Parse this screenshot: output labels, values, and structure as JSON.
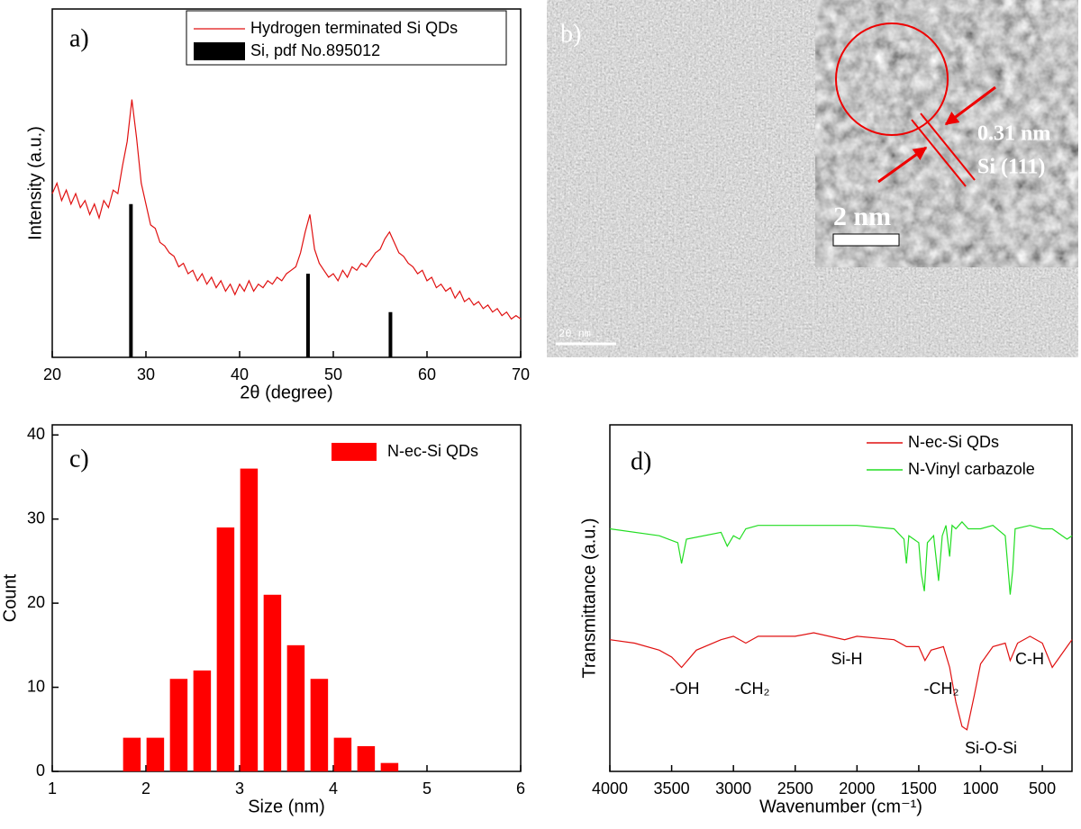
{
  "chart_data": [
    {
      "type": "line",
      "panel_label": "a)",
      "x_label": "2θ (degree)",
      "y_label": "Intensity (a.u.)",
      "xlim": [
        20,
        70
      ],
      "xticks": [
        20,
        30,
        40,
        50,
        60,
        70
      ],
      "ylim": [
        0,
        100
      ],
      "x": [
        20,
        20.5,
        21,
        21.5,
        22,
        22.5,
        23,
        23.5,
        24,
        24.5,
        25,
        25.5,
        26,
        26.5,
        27,
        27.5,
        28,
        28.5,
        29,
        29.5,
        30,
        30.5,
        31,
        31.5,
        32,
        32.5,
        33,
        33.5,
        34,
        34.5,
        35,
        35.5,
        36,
        36.5,
        37,
        37.5,
        38,
        38.5,
        39,
        39.5,
        40,
        40.5,
        41,
        41.5,
        42,
        42.5,
        43,
        43.5,
        44,
        44.5,
        45,
        45.5,
        46,
        46.5,
        47,
        47.5,
        48,
        48.5,
        49,
        49.5,
        50,
        50.5,
        51,
        51.5,
        52,
        52.5,
        53,
        53.5,
        54,
        54.5,
        55,
        55.5,
        56,
        56.5,
        57,
        57.5,
        58,
        58.5,
        59,
        59.5,
        60,
        60.5,
        61,
        61.5,
        62,
        62.5,
        63,
        63.5,
        64,
        64.5,
        65,
        65.5,
        66,
        66.5,
        67,
        67.5,
        68,
        68.5,
        69,
        69.5,
        70
      ],
      "series": [
        {
          "name": "Hydrogen terminated Si QDs",
          "color": "#e01010",
          "values": [
            47,
            50,
            45,
            48,
            44,
            47,
            43,
            45,
            41,
            44,
            40,
            45,
            43,
            48,
            47,
            55,
            62,
            74,
            63,
            50,
            44,
            38,
            37,
            33,
            32,
            30,
            29,
            26,
            27,
            24,
            25,
            22,
            24,
            21,
            23,
            20,
            22,
            19,
            21,
            18,
            21,
            19,
            22,
            19,
            21,
            20,
            22,
            21,
            23,
            22,
            24,
            25,
            26,
            30,
            36,
            41,
            31,
            27,
            25,
            23,
            24,
            22,
            25,
            23,
            26,
            25,
            27,
            26,
            28,
            30,
            31,
            34,
            36,
            33,
            30,
            29,
            27,
            26,
            24,
            25,
            22,
            23,
            20,
            21,
            19,
            20,
            17,
            19,
            16,
            17,
            15,
            16,
            14,
            15,
            13,
            14,
            12,
            13,
            11,
            12,
            11
          ]
        }
      ],
      "reference": {
        "name": "Si, pdf No.895012",
        "color": "#000000",
        "x": [
          28.4,
          47.3,
          56.1
        ],
        "values": [
          44,
          24,
          13
        ]
      }
    },
    {
      "type": "histogram",
      "panel_label": "c)",
      "x_label": "Size (nm)",
      "y_label": "Count",
      "xlim": [
        1,
        6
      ],
      "xticks": [
        1,
        2,
        3,
        4,
        5,
        6
      ],
      "ylim": [
        0,
        41.2
      ],
      "yticks": [
        0,
        10,
        20,
        30,
        40
      ],
      "bins": [
        1.725,
        1.975,
        2.225,
        2.475,
        2.725,
        2.975,
        3.225,
        3.475,
        3.725,
        3.975,
        4.225,
        4.475,
        4.725
      ],
      "series": [
        {
          "name": "N-ec-Si QDs",
          "color": "#ff0000",
          "values": [
            4,
            4,
            11,
            12,
            29,
            36,
            21,
            15,
            11,
            4,
            3,
            1
          ]
        }
      ]
    },
    {
      "type": "line",
      "panel_label": "d)",
      "x_label": "Wavenumber (cm⁻¹)",
      "y_label": "Transmittance (a.u.)",
      "xlim": [
        4000,
        260
      ],
      "xticks": [
        4000,
        3500,
        3000,
        2500,
        2000,
        1500,
        1000,
        500
      ],
      "ylim": [
        0,
        100
      ],
      "series": [
        {
          "name": "N-ec-Si QDs",
          "color": "#e01010",
          "x": [
            4000,
            3800,
            3600,
            3500,
            3420,
            3300,
            3100,
            3000,
            2900,
            2800,
            2500,
            2350,
            2100,
            2000,
            1700,
            1600,
            1500,
            1450,
            1400,
            1300,
            1250,
            1200,
            1150,
            1110,
            1050,
            1000,
            900,
            800,
            760,
            700,
            600,
            500,
            420,
            300,
            260
          ],
          "values": [
            38,
            37,
            35,
            33,
            30,
            35,
            38,
            39,
            37,
            39,
            39,
            40,
            38,
            39,
            38,
            36,
            36,
            32,
            35,
            36,
            30,
            20,
            13,
            12,
            22,
            31,
            36,
            37,
            32,
            37,
            39,
            37,
            30,
            36,
            38
          ]
        },
        {
          "name": "N-Vinyl carbazole",
          "color": "#22dd22",
          "x": [
            4000,
            3600,
            3450,
            3420,
            3380,
            3100,
            3050,
            3000,
            2950,
            2900,
            2800,
            2500,
            2000,
            1700,
            1620,
            1600,
            1580,
            1500,
            1480,
            1455,
            1430,
            1380,
            1340,
            1310,
            1280,
            1250,
            1230,
            1200,
            1150,
            1100,
            1000,
            900,
            800,
            760,
            740,
            720,
            600,
            500,
            420,
            300,
            260
          ],
          "values": [
            70,
            68,
            66,
            60,
            67,
            69,
            65,
            68,
            67,
            70,
            71,
            71,
            71,
            70,
            67,
            60,
            68,
            66,
            57,
            52,
            66,
            68,
            55,
            68,
            71,
            62,
            71,
            70,
            72,
            70,
            70,
            71,
            68,
            51,
            58,
            70,
            71,
            70,
            70,
            67,
            68
          ]
        }
      ],
      "annotations": [
        "-OH",
        "-CH₂",
        "Si-H",
        "-CH₂",
        "C-H",
        "Si-O-Si"
      ]
    }
  ],
  "tem_image": {
    "panel_label": "b)",
    "spacing": "0.31 nm",
    "plane": "Si (111)",
    "inset_scale": "2 nm",
    "scale": "20 nm"
  }
}
